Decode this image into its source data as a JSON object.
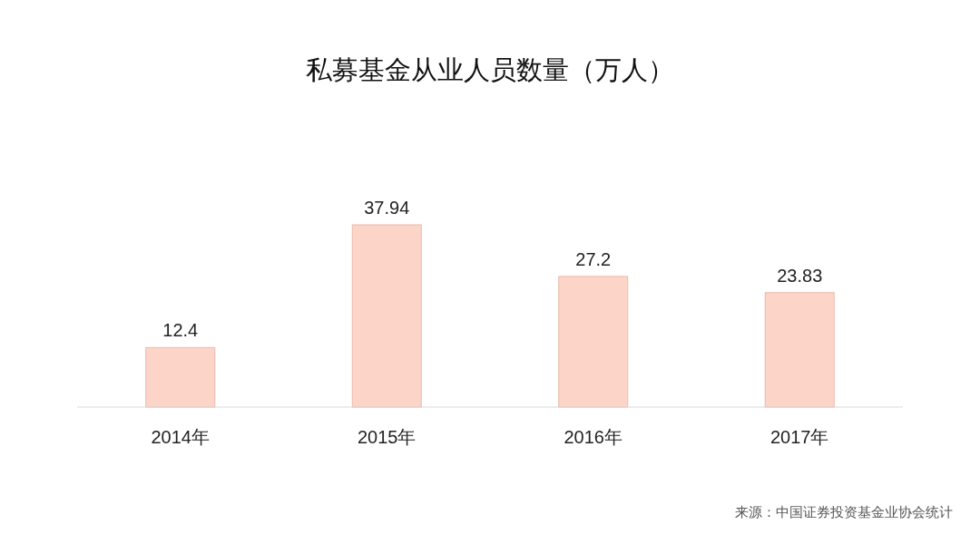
{
  "chart_data": {
    "type": "bar",
    "title": "私募基金从业人员数量（万人）",
    "categories": [
      "2014年",
      "2015年",
      "2016年",
      "2017年"
    ],
    "values": [
      12.4,
      37.94,
      27.2,
      23.83
    ],
    "color": "#fdd5c8",
    "data_labels": true,
    "annotations": [
      "来源：中国证券投资基金业协会统计"
    ]
  }
}
